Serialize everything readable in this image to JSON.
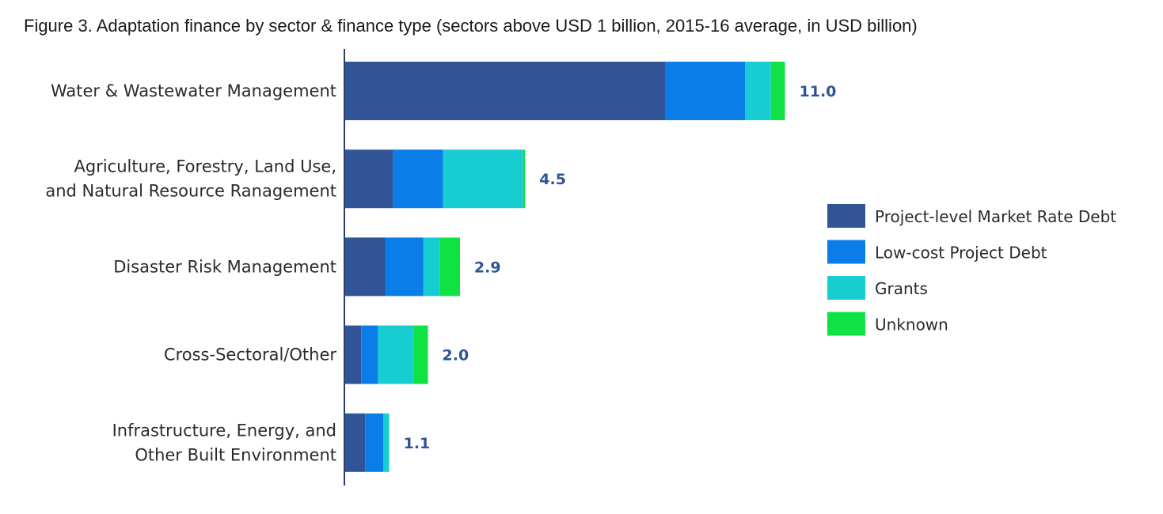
{
  "chart_data": {
    "type": "bar",
    "orientation": "horizontal",
    "stacked": true,
    "title": "Figure 3. Adaptation finance by sector & finance type (sectors above USD 1 billion, 2015-16 average, in USD billion)",
    "categories": [
      [
        "Water & Wastewater Management"
      ],
      [
        "Agriculture, Forestry, Land Use,",
        "and Natural Resource Ranagement"
      ],
      [
        "Disaster Risk Management"
      ],
      [
        "Cross-Sectoral/Other"
      ],
      [
        "Infrastructure, Energy, and",
        "Other Built Environment"
      ]
    ],
    "totals": [
      "11.0",
      "4.5",
      "2.9",
      "2.0",
      "1.1"
    ],
    "series": [
      {
        "name": "Project-level Market Rate Debt",
        "color": "#305496",
        "values": [
          8.0,
          1.2,
          1.0,
          0.4,
          0.5
        ]
      },
      {
        "name": "Low-cost Project Debt",
        "color": "#0a7de8",
        "values": [
          2.0,
          1.25,
          0.95,
          0.42,
          0.45
        ]
      },
      {
        "name": "Grants",
        "color": "#17cdd1",
        "values": [
          0.65,
          2.0,
          0.42,
          0.9,
          0.15
        ]
      },
      {
        "name": "Unknown",
        "color": "#11e243",
        "values": [
          0.35,
          0.05,
          0.5,
          0.35,
          0.0
        ]
      }
    ],
    "xlim": [
      0,
      11
    ],
    "grid": false,
    "legend_position": "right"
  }
}
